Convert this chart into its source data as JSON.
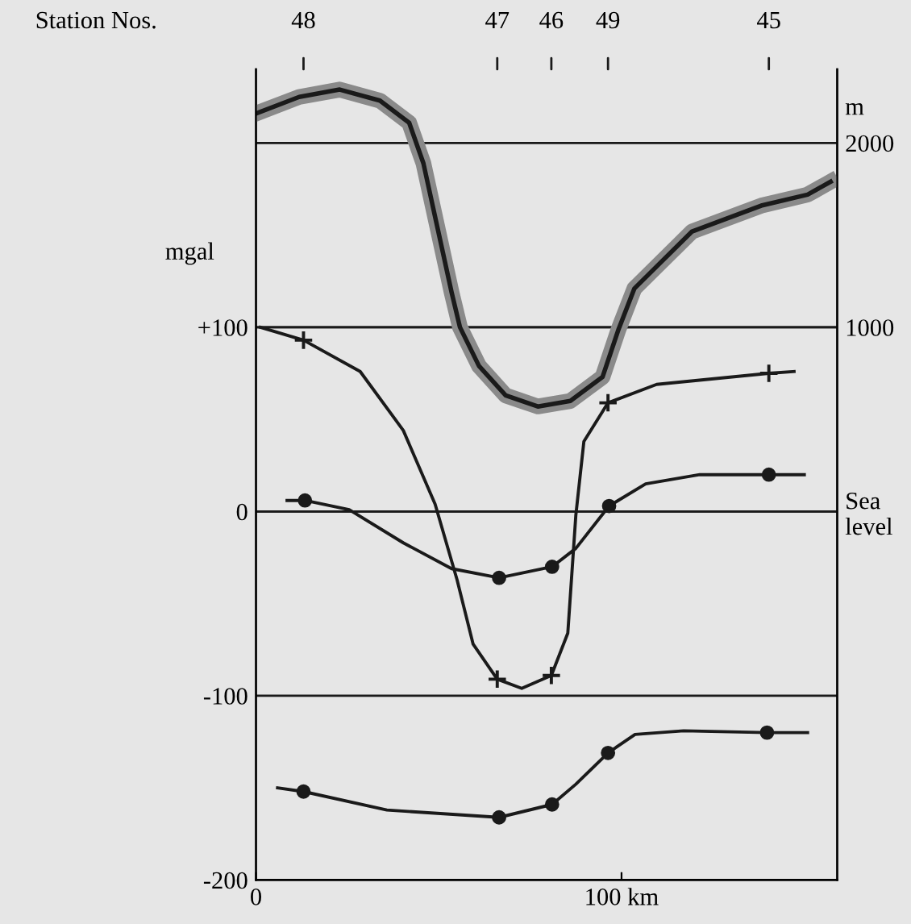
{
  "chart_data": {
    "type": "line",
    "ylabel": "mgal",
    "y2label": "m",
    "annotations": [
      "Station Nos.",
      "48",
      "47",
      "46",
      "49",
      "45"
    ],
    "xlim": [
      0,
      159
    ],
    "xticks": [
      0,
      {
        "value": 100,
        "label": "100 km"
      }
    ],
    "ylim": [
      -200,
      240
    ],
    "yticks": [
      {
        "value": 100,
        "label": "+100"
      },
      0,
      {
        "value": -100,
        "label": "-100"
      },
      {
        "value": -200,
        "label": "-200"
      }
    ],
    "y2lim": [
      -2000,
      2400
    ],
    "y2ticks": [
      2000,
      1000,
      {
        "value": 0,
        "label": "Sea\nlevel"
      }
    ],
    "grid": "y",
    "series": [
      {
        "axis": "y2",
        "color": "#1a1a1a",
        "x": [
          0,
          11.8,
          22.9,
          33.9,
          41.9,
          45.8,
          53.5,
          55.8,
          61,
          68.3,
          77.1,
          86,
          94.8,
          99.2,
          103.5,
          119.3,
          138.2,
          150.9,
          157.2
        ],
        "values": [
          2160,
          2250,
          2290,
          2230,
          2110,
          1890,
          1190,
          1000,
          790,
          630,
          570,
          600,
          730,
          990,
          1210,
          1520,
          1660,
          1720,
          1790
        ]
      },
      {
        "color": "#1a1a1a",
        "x": [
          1.2,
          13,
          28.5,
          40.3,
          49,
          55,
          59.4,
          66,
          72.7,
          80.8,
          85.3,
          87.5,
          89.7,
          96.3,
          109.6,
          140.3,
          147.2
        ],
        "values": [
          100,
          93,
          76,
          44,
          4,
          -37,
          -72,
          -91,
          -96,
          -89,
          -66,
          -2,
          38,
          59,
          69,
          75,
          76
        ]
      },
      {
        "type": "scatter",
        "color": "#1a1a1a",
        "marker": "cross",
        "x": [
          13,
          66,
          80.8,
          96.3,
          140.3
        ],
        "values": [
          93,
          -91,
          -89,
          59,
          75
        ]
      },
      {
        "color": "#1a1a1a",
        "x": [
          8.5,
          13.4,
          25.5,
          40.3,
          53.5,
          66.5,
          81,
          87.5,
          96.6,
          106.6,
          121.4,
          140.3,
          150
        ],
        "values": [
          6,
          6,
          1,
          -17,
          -31,
          -36,
          -30,
          -20,
          3,
          15,
          20,
          20,
          20
        ]
      },
      {
        "type": "scatter",
        "color": "#1a1a1a",
        "marker": "circle",
        "x": [
          13.4,
          66.5,
          81,
          96.6,
          140.3
        ],
        "values": [
          6,
          -36,
          -30,
          3,
          20
        ]
      },
      {
        "color": "#1a1a1a",
        "x": [
          5.9,
          13,
          35.8,
          66.5,
          81,
          87.5,
          96.3,
          103.7,
          117,
          139.8,
          150.9
        ],
        "values": [
          -150,
          -152,
          -162,
          -166,
          -159,
          -148,
          -131,
          -121,
          -119,
          -120,
          -120
        ]
      },
      {
        "type": "scatter",
        "color": "#1a1a1a",
        "marker": "circle",
        "x": [
          13,
          66.5,
          81,
          96.3,
          139.8
        ],
        "values": [
          -152,
          -166,
          -159,
          -131,
          -120
        ]
      }
    ]
  }
}
